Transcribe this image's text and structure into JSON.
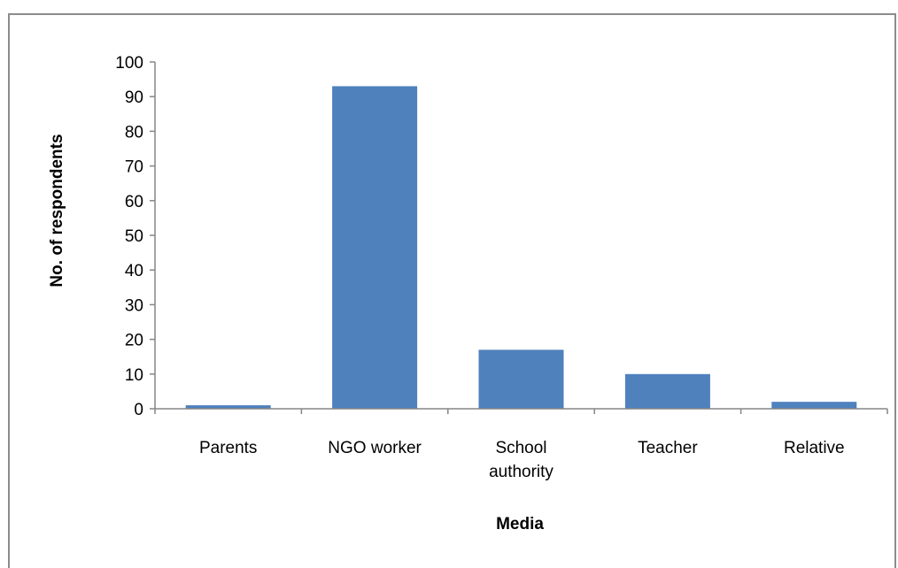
{
  "chart_data": {
    "type": "bar",
    "title": "",
    "xlabel": "Media",
    "ylabel": "No. of respondents",
    "categories": [
      [
        "Parents"
      ],
      [
        "NGO worker"
      ],
      [
        "School",
        "authority"
      ],
      [
        "Teacher"
      ],
      [
        "Relative"
      ]
    ],
    "values": [
      1,
      93,
      17,
      10,
      2
    ],
    "ylim": [
      0,
      100
    ],
    "yticks": [
      0,
      10,
      20,
      30,
      40,
      50,
      60,
      70,
      80,
      90,
      100
    ],
    "grid": false,
    "legend": "none",
    "bar_color": "#4f81bd",
    "axis_color": "#868686"
  }
}
